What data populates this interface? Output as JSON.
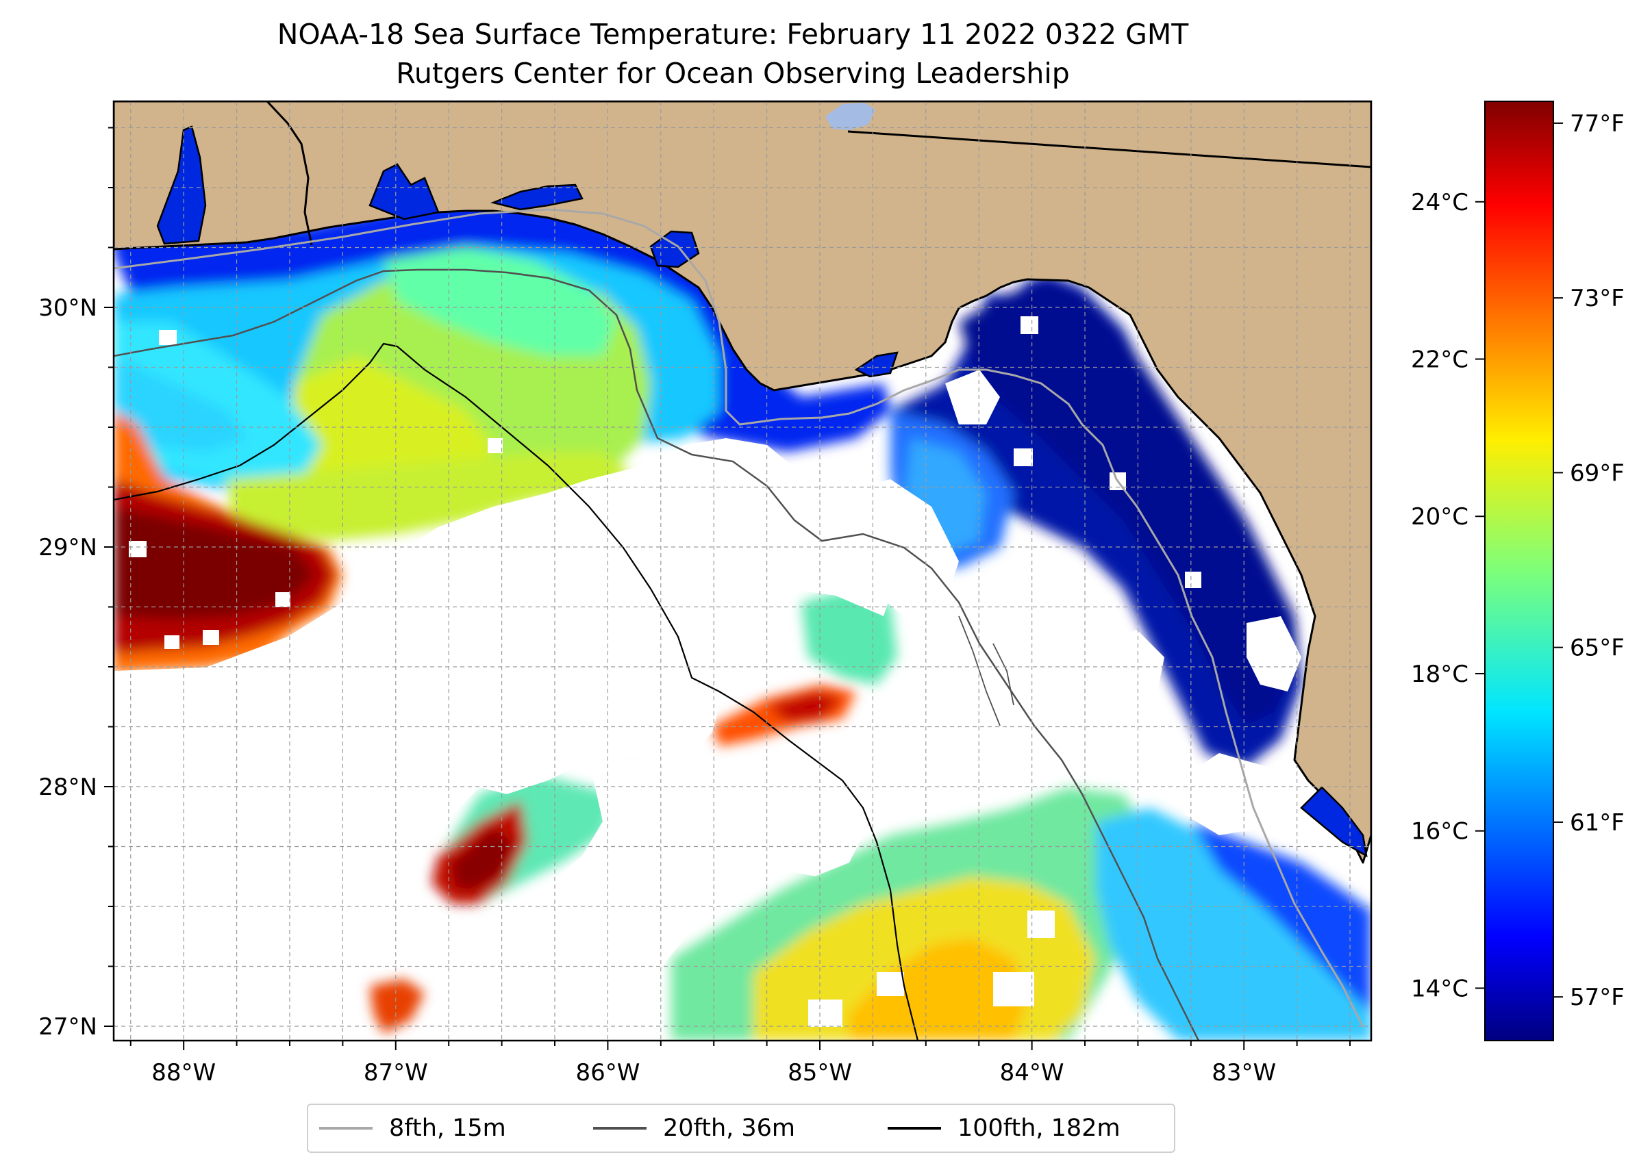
{
  "title": {
    "line1": "NOAA-18 Sea Surface Temperature: February 11 2022 0322 GMT",
    "line2": "Rutgers Center for Ocean Observing Leadership"
  },
  "chart_data": {
    "type": "heatmap",
    "xlim": [
      -88.33,
      -82.4
    ],
    "ylim": [
      26.94,
      30.86
    ],
    "x_ticks": [
      {
        "value": -88,
        "label": "88°W"
      },
      {
        "value": -87,
        "label": "87°W"
      },
      {
        "value": -86,
        "label": "86°W"
      },
      {
        "value": -85,
        "label": "85°W"
      },
      {
        "value": -84,
        "label": "84°W"
      },
      {
        "value": -83,
        "label": "83°W"
      }
    ],
    "y_ticks": [
      {
        "value": 30,
        "label": "30°N"
      },
      {
        "value": 29,
        "label": "29°N"
      },
      {
        "value": 28,
        "label": "28°N"
      },
      {
        "value": 27,
        "label": "27°N"
      }
    ],
    "grid": true,
    "colorbar": {
      "colormap": "jet",
      "f_range": [
        56,
        77.5
      ],
      "celsius_ticks": [
        {
          "value": 24,
          "label": "24°C"
        },
        {
          "value": 22,
          "label": "22°C"
        },
        {
          "value": 20,
          "label": "20°C"
        },
        {
          "value": 18,
          "label": "18°C"
        },
        {
          "value": 16,
          "label": "16°C"
        },
        {
          "value": 14,
          "label": "14°C"
        }
      ],
      "fahrenheit_ticks": [
        {
          "value": 77,
          "label": "77°F"
        },
        {
          "value": 73,
          "label": "73°F"
        },
        {
          "value": 69,
          "label": "69°F"
        },
        {
          "value": 65,
          "label": "65°F"
        },
        {
          "value": 61,
          "label": "61°F"
        },
        {
          "value": 57,
          "label": "57°F"
        }
      ]
    },
    "legend": {
      "placement": "bottom-center",
      "entries": [
        {
          "label": "8fth, 15m",
          "color": "#a8a8a8"
        },
        {
          "label": "20fth, 36m",
          "color": "#505050"
        },
        {
          "label": "100fth, 182m",
          "color": "#000000"
        }
      ]
    },
    "colors": {
      "land": "#d2b48c",
      "water_no_data": "#ffffff",
      "inland_lake": "#a4bce4"
    }
  }
}
